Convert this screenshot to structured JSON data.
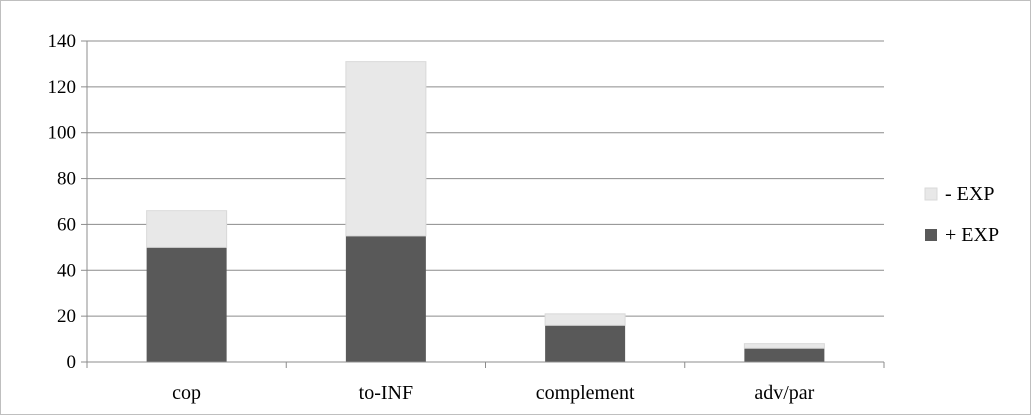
{
  "chart_data": {
    "type": "bar",
    "stacked": true,
    "title": "",
    "xlabel": "",
    "ylabel": "",
    "categories": [
      "cop",
      "to-INF",
      "complement",
      "adv/par"
    ],
    "series": [
      {
        "name": "+ EXP",
        "values": [
          50,
          55,
          16,
          6
        ],
        "color": "#595959"
      },
      {
        "name": "- EXP",
        "values": [
          16,
          76,
          5,
          2
        ],
        "color": "#e8e8e8"
      }
    ],
    "ylim": [
      0,
      140
    ],
    "yticks": [
      0,
      20,
      40,
      60,
      80,
      100,
      120,
      140
    ],
    "grid": true,
    "legend_position": "right",
    "legend_order": [
      "- EXP",
      "+ EXP"
    ]
  }
}
